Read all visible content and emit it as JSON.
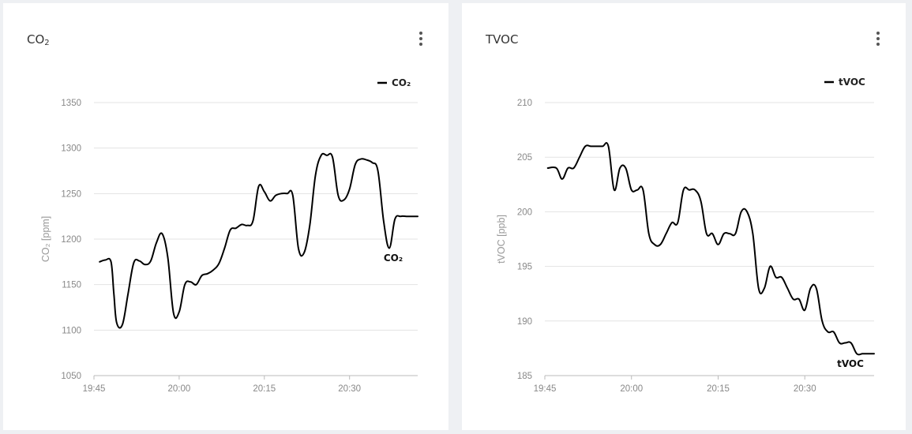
{
  "cards": [
    {
      "title": "CO₂",
      "menu_icon": "more-vertical-icon"
    },
    {
      "title": "TVOC",
      "menu_icon": "more-vertical-icon"
    }
  ],
  "chart_data": [
    {
      "type": "line",
      "title": "",
      "xlabel": "",
      "ylabel": "CO₂ [ppm]",
      "ylim": [
        1050,
        1350
      ],
      "yticks": [
        1050,
        1100,
        1150,
        1200,
        1250,
        1300,
        1350
      ],
      "xlim": [
        "19:45",
        "20:42"
      ],
      "xticks": [
        "19:45",
        "20:00",
        "20:15",
        "20:30"
      ],
      "grid": true,
      "legend": "top-right",
      "series": [
        {
          "name": "CO₂",
          "color": "#000000",
          "end_label": "CO₂",
          "x": [
            "19:46",
            "19:47",
            "19:48",
            "19:48.5",
            "19:49",
            "19:50",
            "19:51",
            "19:52",
            "19:53",
            "19:54",
            "19:55",
            "19:56",
            "19:57",
            "19:58",
            "19:59",
            "20:00",
            "20:01",
            "20:02",
            "20:03",
            "20:04",
            "20:05",
            "20:06",
            "20:07",
            "20:08",
            "20:09",
            "20:10",
            "20:11",
            "20:12",
            "20:13",
            "20:14",
            "20:15",
            "20:16",
            "20:17",
            "20:18",
            "20:19",
            "20:20",
            "20:21",
            "20:22",
            "20:23",
            "20:24",
            "20:25",
            "20:26",
            "20:27",
            "20:28",
            "20:29",
            "20:30",
            "20:31",
            "20:32",
            "20:33",
            "20:34",
            "20:35",
            "20:36",
            "20:37",
            "20:38",
            "20:39",
            "20:40",
            "20:41",
            "20:42"
          ],
          "y": [
            1175,
            1177,
            1175,
            1140,
            1108,
            1106,
            1140,
            1174,
            1176,
            1172,
            1176,
            1196,
            1206,
            1180,
            1119,
            1120,
            1150,
            1153,
            1150,
            1160,
            1162,
            1166,
            1173,
            1190,
            1210,
            1212,
            1216,
            1215,
            1220,
            1258,
            1252,
            1242,
            1248,
            1250,
            1250,
            1248,
            1190,
            1185,
            1215,
            1270,
            1292,
            1292,
            1290,
            1248,
            1243,
            1255,
            1282,
            1288,
            1287,
            1284,
            1275,
            1220,
            1190,
            1222,
            1225,
            1225,
            1225,
            1225
          ]
        }
      ]
    },
    {
      "type": "line",
      "title": "",
      "xlabel": "",
      "ylabel": "tVOC [ppb]",
      "ylim": [
        185,
        210
      ],
      "yticks": [
        185,
        190,
        195,
        200,
        205,
        210
      ],
      "xlim": [
        "19:45",
        "20:42"
      ],
      "xticks": [
        "19:45",
        "20:00",
        "20:15",
        "20:30"
      ],
      "grid": true,
      "legend": "top-right",
      "series": [
        {
          "name": "tVOC",
          "color": "#000000",
          "end_label": "tVOC",
          "x": [
            "19:45.5",
            "19:47",
            "19:48",
            "19:49",
            "19:50",
            "19:51",
            "19:52",
            "19:53",
            "19:54",
            "19:55",
            "19:56",
            "19:57",
            "19:58",
            "19:59",
            "20:00",
            "20:01",
            "20:02",
            "20:03",
            "20:04",
            "20:05",
            "20:06",
            "20:07",
            "20:08",
            "20:09",
            "20:10",
            "20:11",
            "20:12",
            "20:13",
            "20:14",
            "20:15",
            "20:16",
            "20:17",
            "20:18",
            "20:19",
            "20:20",
            "20:21",
            "20:22",
            "20:23",
            "20:24",
            "20:25",
            "20:26",
            "20:27",
            "20:28",
            "20:29",
            "20:30",
            "20:31",
            "20:32",
            "20:33",
            "20:34",
            "20:35",
            "20:36",
            "20:37",
            "20:38",
            "20:39",
            "20:40",
            "20:41",
            "20:42"
          ],
          "y": [
            204,
            204,
            203,
            204,
            204,
            205,
            206,
            206,
            206,
            206,
            206,
            202,
            204,
            204,
            202,
            202,
            202,
            198,
            197,
            197,
            198,
            199,
            199,
            202,
            202,
            202,
            201,
            198,
            198,
            197,
            198,
            198,
            198,
            200,
            200,
            198,
            193,
            193,
            195,
            194,
            194,
            193,
            192,
            192,
            191,
            193,
            193,
            190,
            189,
            189,
            188,
            188,
            188,
            187,
            187,
            187,
            187
          ]
        }
      ]
    }
  ]
}
